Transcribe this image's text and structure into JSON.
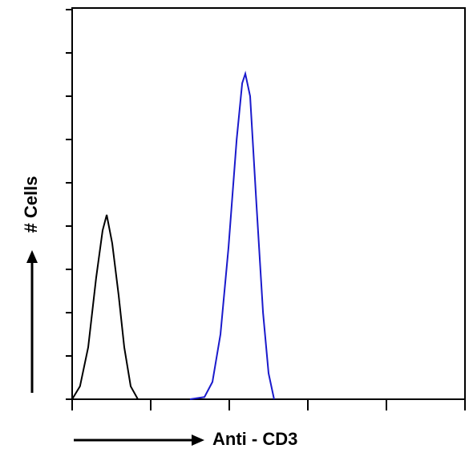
{
  "chart_data": {
    "type": "line",
    "x_label": "Anti - CD3",
    "y_label": "# Cells",
    "xscale": "log",
    "xlim": [
      1,
      100000
    ],
    "xticks": [
      1,
      10,
      100,
      1000,
      10000,
      100000
    ],
    "ylim": [
      0,
      9
    ],
    "yticks": [
      0,
      1,
      2,
      3,
      4,
      5,
      6,
      7,
      8,
      9
    ],
    "series": [
      {
        "color": "#000000",
        "x": [
          1,
          1.26,
          1.6,
          2.02,
          2.44,
          2.75,
          3.24,
          3.91,
          4.6,
          5.56,
          6.87
        ],
        "values": [
          0,
          0.3,
          1.2,
          2.8,
          3.9,
          4.26,
          3.6,
          2.4,
          1.2,
          0.3,
          0
        ]
      },
      {
        "color": "#1a1acc",
        "x": [
          31.6,
          48.3,
          61.1,
          77.3,
          97.7,
          124,
          146,
          160,
          184,
          222,
          269,
          316,
          372
        ],
        "values": [
          0,
          0.05,
          0.4,
          1.5,
          3.5,
          6,
          7.3,
          7.52,
          7.0,
          4.5,
          2,
          0.6,
          0
        ]
      }
    ]
  }
}
